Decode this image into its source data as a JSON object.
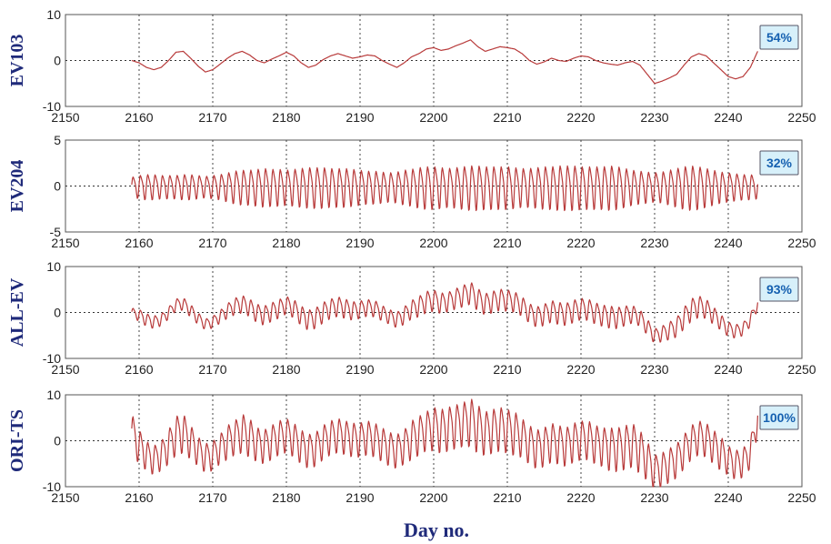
{
  "xlabel": "Day no.",
  "chart_data": [
    {
      "type": "line",
      "ylabel": "EV103",
      "badge": "54%",
      "xlim": [
        2150,
        2250
      ],
      "ylim": [
        -10,
        10
      ],
      "xticks": [
        "2150",
        "2160",
        "2170",
        "2180",
        "2190",
        "2200",
        "2210",
        "2220",
        "2230",
        "2240",
        "2250"
      ],
      "yticks": [
        "10",
        "0",
        "-10"
      ],
      "grid": true,
      "color": "#b83a3a",
      "series": [
        {
          "x": [
            2159,
            2160,
            2161,
            2162,
            2163,
            2164,
            2165,
            2166,
            2167,
            2168,
            2169,
            2170,
            2171,
            2172,
            2173,
            2174,
            2175,
            2176,
            2177,
            2178,
            2179,
            2180,
            2181,
            2182,
            2183,
            2184,
            2185,
            2186,
            2187,
            2188,
            2189,
            2190,
            2191,
            2192,
            2193,
            2194,
            2195,
            2196,
            2197,
            2198,
            2199,
            2200,
            2201,
            2202,
            2203,
            2204,
            2205,
            2206,
            2207,
            2208,
            2209,
            2210,
            2211,
            2212,
            2213,
            2214,
            2215,
            2216,
            2217,
            2218,
            2219,
            2220,
            2221,
            2222,
            2223,
            2224,
            2225,
            2226,
            2227,
            2228,
            2229,
            2230,
            2231,
            2232,
            2233,
            2234,
            2235,
            2236,
            2237,
            2238,
            2239,
            2240,
            2241,
            2242,
            2243,
            2244
          ],
          "y": [
            0,
            -0.5,
            -1.5,
            -2,
            -1.5,
            0,
            1.8,
            2,
            0.5,
            -1.2,
            -2.5,
            -2,
            -0.8,
            0.5,
            1.5,
            2,
            1.2,
            0,
            -0.5,
            0.3,
            1,
            1.8,
            1,
            -0.5,
            -1.5,
            -1,
            0.2,
            1,
            1.5,
            1,
            0.5,
            0.8,
            1.2,
            1,
            0,
            -0.8,
            -1.5,
            -0.5,
            0.8,
            1.5,
            2.5,
            2.8,
            2.2,
            2.5,
            3.2,
            3.8,
            4.5,
            3,
            2,
            2.5,
            3,
            2.8,
            2.5,
            1.5,
            0,
            -0.8,
            -0.3,
            0.5,
            0,
            -0.2,
            0.5,
            1,
            0.8,
            0,
            -0.5,
            -0.8,
            -1,
            -0.5,
            -0.2,
            -1,
            -3,
            -5,
            -4.5,
            -3.8,
            -3,
            -1,
            0.8,
            1.5,
            1,
            -0.5,
            -2,
            -3.5,
            -4,
            -3.5,
            -1.5,
            2
          ]
        }
      ]
    },
    {
      "type": "line",
      "ylabel": "EV204",
      "badge": "32%",
      "xlim": [
        2150,
        2250
      ],
      "ylim": [
        -5,
        5
      ],
      "xticks": [
        "2150",
        "2160",
        "2170",
        "2180",
        "2190",
        "2200",
        "2210",
        "2220",
        "2230",
        "2240",
        "2250"
      ],
      "yticks": [
        "5",
        "0",
        "-5"
      ],
      "grid": true,
      "color": "#b83a3a",
      "series": [
        {
          "x": [
            2159,
            2160,
            2161,
            2162,
            2163,
            2164,
            2165,
            2166,
            2167,
            2168,
            2169,
            2170,
            2171,
            2172,
            2173,
            2174,
            2175,
            2176,
            2177,
            2178,
            2179,
            2180,
            2181,
            2182,
            2183,
            2184,
            2185,
            2186,
            2187,
            2188,
            2189,
            2190,
            2191,
            2192,
            2193,
            2194,
            2195,
            2196,
            2197,
            2198,
            2199,
            2200,
            2201,
            2202,
            2203,
            2204,
            2205,
            2206,
            2207,
            2208,
            2209,
            2210,
            2211,
            2212,
            2213,
            2214,
            2215,
            2216,
            2217,
            2218,
            2219,
            2220,
            2221,
            2222,
            2223,
            2224,
            2225,
            2226,
            2227,
            2228,
            2229,
            2230,
            2231,
            2232,
            2233,
            2234,
            2235,
            2236,
            2237,
            2238,
            2239,
            2240,
            2241,
            2242,
            2243,
            2244
          ],
          "amplitude": [
            1,
            1.2,
            1.3,
            1.3,
            1.2,
            1.2,
            1.2,
            1.3,
            1.3,
            1.2,
            1.1,
            1.2,
            1.3,
            1.5,
            1.7,
            1.8,
            1.8,
            1.9,
            2,
            1.9,
            1.9,
            1.8,
            1.9,
            2,
            2.1,
            2.1,
            2.1,
            2,
            2,
            2,
            1.9,
            1.8,
            1.7,
            1.7,
            1.6,
            1.5,
            1.6,
            1.8,
            1.9,
            2.1,
            2.2,
            2.2,
            2.1,
            2,
            2.1,
            2.2,
            2.3,
            2.3,
            2.2,
            2.2,
            2.2,
            2.2,
            2.1,
            2,
            2,
            2.1,
            2.2,
            2.2,
            2.3,
            2.3,
            2.3,
            2.2,
            2.2,
            2.2,
            2.2,
            2.3,
            2.2,
            2,
            1.8,
            1.7,
            1.6,
            1.5,
            1.6,
            1.8,
            2,
            2.2,
            2.3,
            2.2,
            2,
            1.8,
            1.6,
            1.5,
            1.4,
            1.3,
            1.3,
            1.2
          ]
        }
      ]
    },
    {
      "type": "line",
      "ylabel": "ALL-EV",
      "badge": "93%",
      "xlim": [
        2150,
        2250
      ],
      "ylim": [
        -10,
        10
      ],
      "xticks": [
        "2150",
        "2160",
        "2170",
        "2180",
        "2190",
        "2200",
        "2210",
        "2220",
        "2230",
        "2240",
        "2250"
      ],
      "yticks": [
        "10",
        "0",
        "-10"
      ],
      "grid": true,
      "color": "#b83a3a",
      "series": [
        {
          "x": [
            2159,
            2160,
            2161,
            2162,
            2163,
            2164,
            2165,
            2166,
            2167,
            2168,
            2169,
            2170,
            2171,
            2172,
            2173,
            2174,
            2175,
            2176,
            2177,
            2178,
            2179,
            2180,
            2181,
            2182,
            2183,
            2184,
            2185,
            2186,
            2187,
            2188,
            2189,
            2190,
            2191,
            2192,
            2193,
            2194,
            2195,
            2196,
            2197,
            2198,
            2199,
            2200,
            2201,
            2202,
            2203,
            2204,
            2205,
            2206,
            2207,
            2208,
            2209,
            2210,
            2211,
            2212,
            2213,
            2214,
            2215,
            2216,
            2217,
            2218,
            2219,
            2220,
            2221,
            2222,
            2223,
            2224,
            2225,
            2226,
            2227,
            2228,
            2229,
            2230,
            2231,
            2232,
            2233,
            2234,
            2235,
            2236,
            2237,
            2238,
            2239,
            2240,
            2241,
            2242,
            2243,
            2244
          ],
          "y": [
            0,
            -0.5,
            -1.5,
            -2,
            -1.5,
            0,
            1.8,
            2,
            0.5,
            -1.2,
            -2.5,
            -2,
            -0.8,
            0.5,
            1.5,
            2,
            1.2,
            0,
            -0.5,
            0.3,
            1,
            1.8,
            1,
            -0.5,
            -1.5,
            -1,
            0.2,
            1,
            1.5,
            1,
            0.5,
            0.8,
            1.2,
            1,
            0,
            -0.8,
            -1.5,
            -0.5,
            0.8,
            1.5,
            2.5,
            2.8,
            2.2,
            2.5,
            3.2,
            3.8,
            4.5,
            3,
            2,
            2.5,
            3,
            2.8,
            2.5,
            1.5,
            0,
            -0.8,
            -0.3,
            0.5,
            0,
            -0.2,
            0.5,
            1,
            0.8,
            0,
            -0.5,
            -0.8,
            -1,
            -0.5,
            -0.2,
            -1,
            -3,
            -5,
            -4.5,
            -3.8,
            -3,
            -1,
            0.8,
            1.5,
            1,
            -0.5,
            -2,
            -3.5,
            -4,
            -3.5,
            -1.5,
            2
          ],
          "amplitude": [
            1,
            1.2,
            1.3,
            1.3,
            1.2,
            1.2,
            1.2,
            1.3,
            1.3,
            1.2,
            1.1,
            1.2,
            1.3,
            1.5,
            1.7,
            1.8,
            1.8,
            1.9,
            2,
            1.9,
            1.9,
            1.8,
            1.9,
            2,
            2.1,
            2.1,
            2.1,
            2,
            2,
            2,
            1.9,
            1.8,
            1.7,
            1.7,
            1.6,
            1.5,
            1.6,
            1.8,
            1.9,
            2.1,
            2.2,
            2.2,
            2.1,
            2,
            2.1,
            2.2,
            2.3,
            2.3,
            2.2,
            2.2,
            2.2,
            2.2,
            2.1,
            2,
            2,
            2.1,
            2.2,
            2.2,
            2.3,
            2.3,
            2.3,
            2.2,
            2.2,
            2.2,
            2.2,
            2.3,
            2.2,
            2,
            1.8,
            1.7,
            1.6,
            1.5,
            1.6,
            1.8,
            2,
            2.2,
            2.3,
            2.2,
            2,
            1.8,
            1.6,
            1.5,
            1.4,
            1.3,
            1.3,
            1.2
          ]
        }
      ]
    },
    {
      "type": "line",
      "ylabel": "ORI-TS",
      "badge": "100%",
      "xlim": [
        2150,
        2250
      ],
      "ylim": [
        -10,
        10
      ],
      "xticks": [
        "2150",
        "2160",
        "2170",
        "2180",
        "2190",
        "2200",
        "2210",
        "2220",
        "2230",
        "2240",
        "2250"
      ],
      "yticks": [
        "10",
        "0",
        "-10"
      ],
      "grid": true,
      "color": "#b83a3a",
      "series": [
        {
          "x": [
            2159,
            2160,
            2161,
            2162,
            2163,
            2164,
            2165,
            2166,
            2167,
            2168,
            2169,
            2170,
            2171,
            2172,
            2173,
            2174,
            2175,
            2176,
            2177,
            2178,
            2179,
            2180,
            2181,
            2182,
            2183,
            2184,
            2185,
            2186,
            2187,
            2188,
            2189,
            2190,
            2191,
            2192,
            2193,
            2194,
            2195,
            2196,
            2197,
            2198,
            2199,
            2200,
            2201,
            2202,
            2203,
            2204,
            2205,
            2206,
            2207,
            2208,
            2209,
            2210,
            2211,
            2212,
            2213,
            2214,
            2215,
            2216,
            2217,
            2218,
            2219,
            2220,
            2221,
            2222,
            2223,
            2224,
            2225,
            2226,
            2227,
            2228,
            2229,
            2230,
            2231,
            2232,
            2233,
            2234,
            2235,
            2236,
            2237,
            2238,
            2239,
            2240,
            2241,
            2242,
            2243,
            2244
          ],
          "y": [
            2,
            -1,
            -3,
            -4,
            -3,
            -1,
            1.5,
            2,
            0,
            -2,
            -3.5,
            -3,
            -1.5,
            0,
            1,
            2,
            1,
            -0.5,
            -1,
            0,
            1,
            1.5,
            0.5,
            -1,
            -2,
            -1.5,
            0,
            1,
            1.5,
            1,
            0.5,
            0.5,
            1,
            0.5,
            -0.5,
            -1.5,
            -2,
            -1,
            0.5,
            1.5,
            2.5,
            3,
            2.5,
            3,
            3.5,
            4,
            4.5,
            3,
            2,
            2.5,
            3,
            2.5,
            2,
            1,
            -0.5,
            -1.5,
            -1,
            0,
            -0.5,
            -1,
            0,
            0.5,
            0.5,
            -0.5,
            -1,
            -1.5,
            -1.5,
            -1,
            -0.5,
            -2,
            -4,
            -6.5,
            -6,
            -5,
            -4,
            -2,
            0,
            1,
            0.5,
            -1,
            -2.5,
            -4,
            -5,
            -4.5,
            -2.5,
            5
          ],
          "amplitude": [
            4,
            3.5,
            3,
            3,
            3,
            3.5,
            4,
            4,
            3.5,
            3,
            3,
            3,
            3,
            3.5,
            3.5,
            4,
            4,
            3.5,
            3.5,
            3.5,
            3.5,
            3.5,
            3.5,
            3.5,
            3.5,
            3.5,
            3.5,
            3.5,
            3.5,
            3.5,
            3.5,
            3.5,
            3.5,
            3.5,
            3.5,
            3.5,
            3.5,
            3.5,
            4,
            4,
            4,
            4.5,
            4.5,
            4.5,
            4.5,
            4.5,
            5,
            5,
            4.5,
            4.5,
            4.5,
            4.5,
            4.5,
            4,
            4,
            4,
            4,
            4,
            4,
            4,
            4,
            4,
            4,
            4,
            4,
            4.5,
            4.5,
            4.5,
            4.5,
            4.5,
            4,
            3.5,
            3.5,
            3.5,
            3.5,
            3.5,
            3.5,
            3.5,
            3.5,
            3.5,
            3.5,
            3,
            3,
            3,
            3,
            3
          ]
        }
      ]
    }
  ]
}
